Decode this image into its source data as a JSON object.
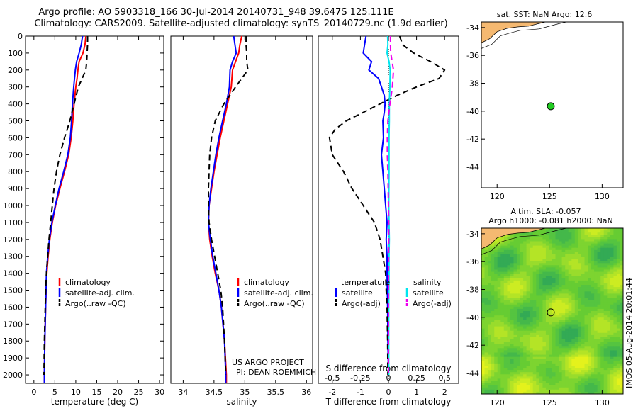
{
  "figure": {
    "title_line1": "Argo profile: AO 5903318_166 30-Jul-2014 20140731_948 39.647S 125.111E",
    "title_line2": "Climatology: CARS2009. Satellite-adjusted climatology: synTS_20140729.nc (1.9d earlier)",
    "project_note_1": "US ARGO PROJECT",
    "project_note_2": "PI: DEAN ROEMMICH",
    "vertical_stamp": "IMOS 05-Aug-2014 20:01:44"
  },
  "colors": {
    "climatology": "#ff0000",
    "satellite": "#0000ff",
    "argo": "#000000",
    "salinity_satellite": "#00e5ee",
    "salinity_argo": "#ee00ee",
    "land": "#f5b971",
    "float_marker": "#22cc22",
    "map_bg": "#ffffff"
  },
  "chart_data": [
    {
      "type": "line",
      "id": "temperature-profile",
      "xlabel": "temperature (deg C)",
      "ylabel": "",
      "xlim": [
        -2,
        31
      ],
      "ylim": [
        2050,
        0
      ],
      "xticks": [
        0,
        5,
        10,
        15,
        20,
        25,
        30
      ],
      "yticks": [
        0,
        100,
        200,
        300,
        400,
        500,
        600,
        700,
        800,
        900,
        1000,
        1100,
        1200,
        1300,
        1400,
        1500,
        1600,
        1700,
        1800,
        1900,
        2000
      ],
      "legend": [
        "climatology",
        "satellite-adj. clim.",
        "Argo(..raw -QC)"
      ],
      "legend_position": "bottom-center",
      "series": [
        {
          "name": "climatology",
          "style": "solid",
          "color_key": "climatology",
          "depth": [
            0,
            50,
            100,
            150,
            200,
            250,
            300,
            400,
            500,
            600,
            700,
            800,
            900,
            1000,
            1100,
            1200,
            1300,
            1400,
            1500,
            1600,
            1800,
            2000,
            2050
          ],
          "values": [
            12.4,
            12.2,
            11.7,
            10.8,
            10.5,
            10.3,
            10.0,
            9.6,
            9.3,
            8.9,
            8.3,
            7.3,
            6.2,
            5.2,
            4.4,
            3.8,
            3.4,
            3.1,
            2.9,
            2.8,
            2.6,
            2.5,
            2.5
          ]
        },
        {
          "name": "satellite-adj. clim.",
          "style": "solid",
          "color_key": "satellite",
          "depth": [
            0,
            50,
            100,
            150,
            200,
            250,
            300,
            400,
            500,
            600,
            700,
            800,
            900,
            1000,
            1100,
            1200,
            1300,
            1400,
            1500,
            1600,
            1800,
            2000,
            2050
          ],
          "values": [
            11.6,
            11.3,
            10.8,
            10.2,
            9.9,
            9.7,
            9.5,
            9.2,
            9.0,
            8.7,
            8.1,
            7.1,
            6.0,
            5.1,
            4.3,
            3.7,
            3.3,
            3.0,
            2.9,
            2.8,
            2.6,
            2.5,
            2.5
          ]
        },
        {
          "name": "Argo(..raw -QC)",
          "style": "dashed",
          "color_key": "argo",
          "depth": [
            0,
            50,
            100,
            150,
            200,
            250,
            300,
            400,
            500,
            600,
            700,
            800,
            900,
            1000,
            1100,
            1200,
            1300,
            1400,
            1500,
            1600,
            1800,
            2000
          ],
          "values": [
            12.8,
            12.8,
            12.7,
            12.6,
            12.4,
            11.5,
            10.6,
            9.6,
            8.6,
            7.3,
            6.2,
            5.4,
            4.8,
            4.4,
            4.0,
            3.6,
            3.3,
            3.0,
            2.8,
            2.7,
            2.5,
            2.4
          ]
        }
      ]
    },
    {
      "type": "line",
      "id": "salinity-profile",
      "xlabel": "salinity",
      "ylabel": "",
      "xlim": [
        33.8,
        36.1
      ],
      "ylim": [
        2050,
        0
      ],
      "xticks": [
        34,
        34.5,
        35,
        35.5,
        36
      ],
      "xtick_labels": [
        "34",
        "34.5",
        "35",
        "35.5",
        "36"
      ],
      "legend": [
        "climatology",
        "satellite-adj. clim.",
        "Argo(..raw -QC)"
      ],
      "legend_position": "bottom-right",
      "series": [
        {
          "name": "climatology",
          "style": "solid",
          "color_key": "climatology",
          "depth": [
            0,
            50,
            100,
            150,
            200,
            300,
            400,
            500,
            600,
            700,
            800,
            900,
            1000,
            1100,
            1200,
            1300,
            1400,
            1500,
            1600,
            1800,
            2000,
            2050
          ],
          "values": [
            34.95,
            34.92,
            34.9,
            34.85,
            34.8,
            34.78,
            34.72,
            34.66,
            34.6,
            34.55,
            34.5,
            34.46,
            34.42,
            34.41,
            34.43,
            34.47,
            34.52,
            34.58,
            34.62,
            34.67,
            34.7,
            34.7
          ]
        },
        {
          "name": "satellite-adj. clim.",
          "style": "solid",
          "color_key": "satellite",
          "depth": [
            0,
            50,
            100,
            150,
            200,
            300,
            400,
            500,
            600,
            700,
            800,
            900,
            1000,
            1100,
            1200,
            1300,
            1400,
            1500,
            1600,
            1800,
            2000,
            2050
          ],
          "values": [
            34.82,
            34.84,
            34.86,
            34.8,
            34.76,
            34.75,
            34.7,
            34.64,
            34.58,
            34.53,
            34.49,
            34.45,
            34.42,
            34.41,
            34.44,
            34.48,
            34.53,
            34.58,
            34.62,
            34.67,
            34.69,
            34.69
          ]
        },
        {
          "name": "Argo(..raw -QC)",
          "style": "dashed",
          "color_key": "argo",
          "depth": [
            0,
            50,
            100,
            150,
            200,
            250,
            300,
            400,
            500,
            600,
            700,
            800,
            900,
            1000,
            1100,
            1200,
            1300,
            1400,
            1500,
            1600,
            1800,
            2000
          ],
          "values": [
            35.02,
            35.02,
            35.03,
            35.03,
            35.05,
            34.95,
            34.85,
            34.66,
            34.52,
            34.46,
            34.43,
            34.42,
            34.41,
            34.41,
            34.42,
            34.46,
            34.51,
            34.56,
            34.61,
            34.64,
            34.67,
            34.69
          ]
        }
      ]
    },
    {
      "type": "line",
      "id": "difference-profile",
      "xlabel": "T difference from climatology",
      "ylabel": "",
      "xlabel_top": "S difference from climatology",
      "xlim": [
        -2.5,
        2.5
      ],
      "ylim": [
        2050,
        0
      ],
      "xticks": [
        -2,
        -1,
        0,
        1,
        2
      ],
      "xtick_labels": [
        "-2",
        "-1",
        "0",
        "1",
        "2"
      ],
      "top_xticks": [
        -2.0,
        -1.0,
        0.0,
        1.0,
        2.0
      ],
      "top_xtick_labels": [
        "-0.5",
        "-0.25",
        "0",
        "0.25",
        "0.5"
      ],
      "legend_temperature": {
        "title": "temperature",
        "entries": [
          "satellite",
          "Argo(-adj)"
        ]
      },
      "legend_salinity": {
        "title": "salinity",
        "entries": [
          "satellite",
          "Argo(-adj)"
        ]
      },
      "legend_position": "bottom",
      "series": [
        {
          "name": "temperature satellite",
          "style": "solid",
          "color_key": "satellite",
          "depth": [
            0,
            50,
            100,
            150,
            200,
            250,
            300,
            350,
            400,
            450,
            500,
            600,
            700,
            800,
            900,
            1000,
            1100,
            1200,
            1300,
            1400,
            1600,
            1800,
            2000
          ],
          "values": [
            -0.8,
            -0.85,
            -0.9,
            -0.6,
            -0.7,
            -0.35,
            -0.25,
            -0.15,
            -0.12,
            -0.15,
            -0.2,
            -0.18,
            -0.25,
            -0.2,
            -0.15,
            -0.1,
            -0.05,
            -0.08,
            -0.05,
            -0.05,
            -0.03,
            -0.02,
            0.0
          ]
        },
        {
          "name": "temperature Argo(-adj)",
          "style": "dashed",
          "color_key": "argo",
          "depth": [
            0,
            50,
            100,
            150,
            200,
            250,
            300,
            350,
            400,
            450,
            500,
            550,
            600,
            700,
            800,
            900,
            1000,
            1100,
            1200,
            1300,
            1400,
            1500,
            1600,
            1800,
            2000
          ],
          "values": [
            0.4,
            0.5,
            0.9,
            1.5,
            2.0,
            1.8,
            1.0,
            0.3,
            -0.3,
            -0.9,
            -1.5,
            -1.9,
            -2.1,
            -2.0,
            -1.6,
            -1.3,
            -0.9,
            -0.5,
            -0.3,
            -0.2,
            -0.1,
            -0.08,
            -0.05,
            -0.03,
            -0.02
          ]
        },
        {
          "name": "salinity satellite",
          "style": "solid",
          "color_key": "salinity_satellite",
          "depth": [
            0,
            50,
            100,
            150,
            200,
            300,
            400,
            500,
            600,
            800,
            1000,
            1100,
            1200,
            1300,
            1400,
            1600,
            1800,
            2000
          ],
          "values": [
            -0.03,
            -0.02,
            -0.05,
            0.02,
            0.06,
            0.05,
            0.03,
            0.03,
            0.02,
            0.02,
            0.01,
            0.02,
            0.03,
            0.02,
            0.02,
            0.01,
            0.01,
            0.01
          ]
        },
        {
          "name": "salinity Argo(-adj)",
          "style": "dashed",
          "color_key": "salinity_argo",
          "depth": [
            0,
            50,
            100,
            150,
            200,
            300,
            400,
            500,
            600,
            700,
            800,
            900,
            1000,
            1100,
            1200,
            1400,
            1600,
            1800,
            2000
          ],
          "values": [
            0.07,
            0.07,
            0.08,
            0.13,
            0.18,
            0.14,
            0.05,
            -0.02,
            -0.04,
            -0.04,
            -0.02,
            -0.01,
            0.0,
            0.01,
            0.01,
            0.0,
            0.0,
            0.0,
            0.0
          ]
        }
      ]
    },
    {
      "type": "scatter",
      "id": "sst-map",
      "title": "sat. SST: NaN Argo: 12.6",
      "xlim": [
        118.5,
        132
      ],
      "ylim": [
        -45.5,
        -33.6
      ],
      "xticks": [
        120,
        125,
        130
      ],
      "yticks": [
        -34,
        -36,
        -38,
        -40,
        -42,
        -44
      ],
      "float_position": {
        "lon": 125.111,
        "lat": -39.647
      }
    },
    {
      "type": "heatmap",
      "id": "altimetry-map",
      "title_line1": "Altim. SLA: -0.057",
      "title_line2": "Argo h1000: -0.081 h2000: NaN",
      "xlim": [
        118.5,
        132
      ],
      "ylim": [
        -45.5,
        -33.6
      ],
      "xticks": [
        120,
        125,
        130
      ],
      "yticks": [
        -34,
        -36,
        -38,
        -40,
        -42,
        -44
      ],
      "float_position": {
        "lon": 125.111,
        "lat": -39.647
      }
    }
  ]
}
